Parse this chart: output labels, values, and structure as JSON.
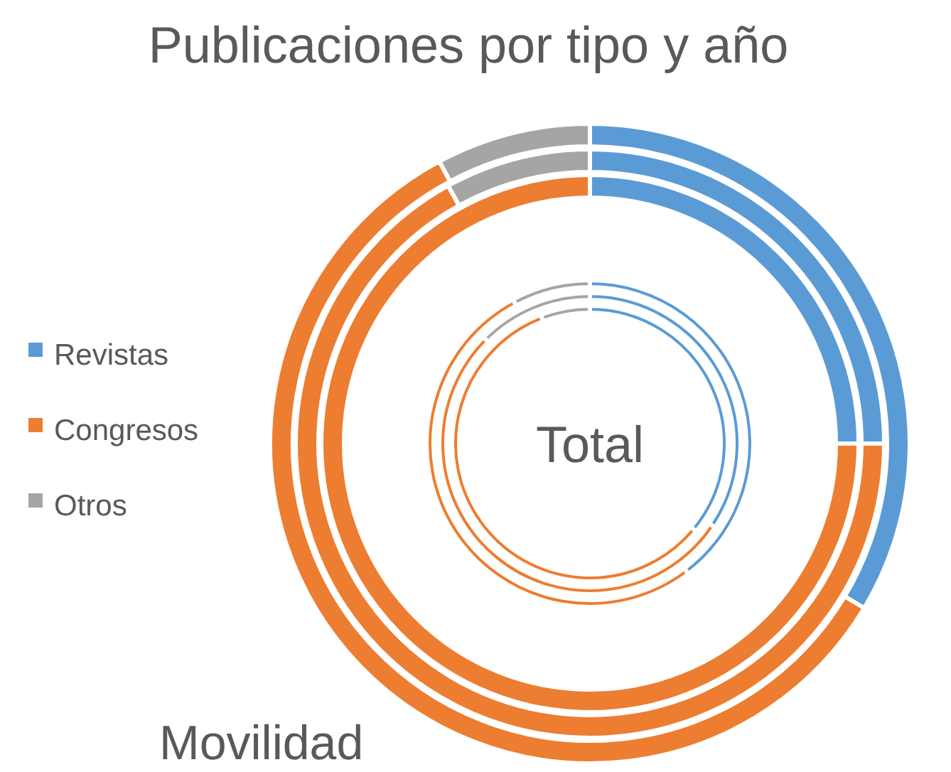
{
  "chart_data": [
    {
      "type": "donut",
      "title": "Publicaciones por tipo y año",
      "categories": [
        "Revistas",
        "Congresos",
        "Otros"
      ],
      "colors": [
        "#5b9bd5",
        "#ed7d31",
        "#a5a5a5"
      ],
      "legend": "left",
      "values": [
        33.6,
        58.6,
        7.8
      ],
      "annotations": [
        "Movilidad"
      ]
    },
    {
      "type": "donut",
      "colors": [
        "#5b9bd5",
        "#ed7d31",
        "#a5a5a5"
      ],
      "values": [
        25,
        67,
        8
      ]
    },
    {
      "type": "donut",
      "colors": [
        "#5b9bd5",
        "#ed7d31"
      ],
      "values": [
        25,
        75
      ]
    },
    {
      "type": "donut",
      "colors": [
        "#5b9bd5",
        "#ed7d31",
        "#a5a5a5"
      ],
      "values": [
        39.7,
        52.5,
        7.8
      ],
      "annotations": [
        "Total"
      ]
    },
    {
      "type": "donut",
      "colors": [
        "#5b9bd5",
        "#ed7d31",
        "#a5a5a5"
      ],
      "values": [
        34.4,
        53.1,
        12.5
      ]
    },
    {
      "type": "donut",
      "colors": [
        "#5b9bd5",
        "#ed7d31",
        "#a5a5a5"
      ],
      "values": [
        36,
        58.2,
        5.8
      ]
    }
  ]
}
